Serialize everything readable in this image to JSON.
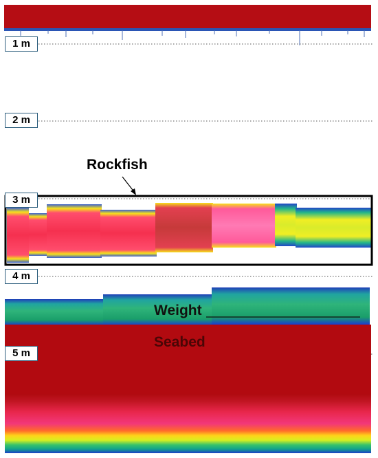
{
  "depth_labels": [
    {
      "label": "1 m"
    },
    {
      "label": "2 m"
    },
    {
      "label": "3 m"
    },
    {
      "label": "4 m"
    },
    {
      "label": "5 m"
    }
  ],
  "annotations": {
    "rockfish": "Rockfish",
    "weight": "Weight",
    "seabed": "Seabed"
  },
  "colors": {
    "surface_band": "#b50d14",
    "seabed": "#b20a10",
    "highlight_box": "#000000",
    "depth_gridline": "#555555",
    "label_border": "#2b5d7c"
  }
}
